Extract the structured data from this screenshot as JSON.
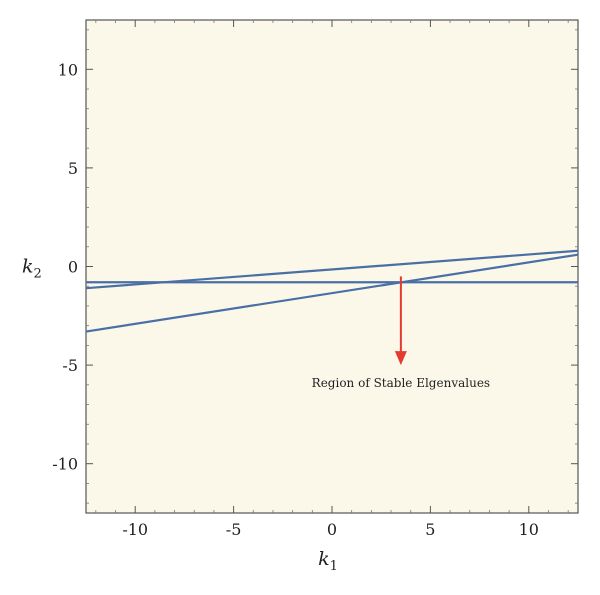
{
  "chart_data": {
    "type": "line",
    "title": "",
    "xlabel": "k",
    "xlabel_sub": "1",
    "ylabel": "k",
    "ylabel_sub": "2",
    "xlim": [
      -12.5,
      12.5
    ],
    "ylim": [
      -12.5,
      12.5
    ],
    "xticks": [
      -10,
      -5,
      0,
      5,
      10
    ],
    "yticks": [
      10,
      5,
      0,
      -5,
      -10
    ],
    "xtick_labels": [
      "-10",
      "-5",
      "0",
      "5",
      "10"
    ],
    "ytick_labels": [
      "10",
      "5",
      "0",
      "-5",
      "-10"
    ],
    "grid": false,
    "region_fill": "#fbf8ea",
    "line_color": "#4a6fa5",
    "annotation_color": "#e53a2f",
    "series": [
      {
        "x": [
          -12.5,
          12.5
        ],
        "y": [
          -1.1,
          0.8
        ]
      },
      {
        "x": [
          -12.5,
          12.5
        ],
        "y": [
          -3.3,
          0.6
        ]
      },
      {
        "x": [
          -12.5,
          12.5
        ],
        "y": [
          -0.8,
          -0.8
        ]
      }
    ],
    "annotation": {
      "text": "Region of Stable Elgenvalues",
      "arrow_x": 3.5,
      "arrow_y_start": -0.5,
      "arrow_y_end": -5.0
    }
  }
}
